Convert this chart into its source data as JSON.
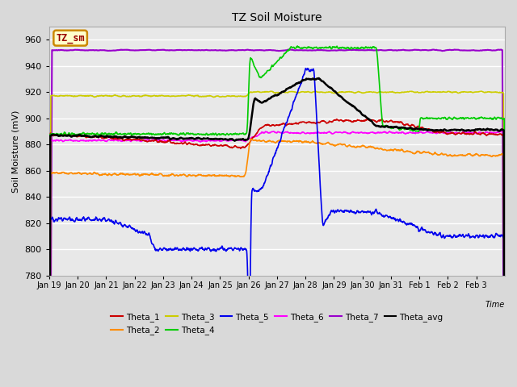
{
  "title": "TZ Soil Moisture",
  "ylabel": "Soil Moisture (mV)",
  "xlabel": "Time",
  "legend_label": "TZ_sm",
  "ylim": [
    780,
    970
  ],
  "yticks": [
    780,
    800,
    820,
    840,
    860,
    880,
    900,
    920,
    940,
    960
  ],
  "date_labels": [
    "Jan 19",
    "Jan 20",
    "Jan 21",
    "Jan 22",
    "Jan 23",
    "Jan 24",
    "Jan 25",
    "Jan 26",
    "Jan 27",
    "Jan 28",
    "Jan 29",
    "Jan 30",
    "Jan 31",
    "Feb 1",
    "Feb 2",
    "Feb 3"
  ],
  "series": {
    "Theta_1": {
      "color": "#cc0000",
      "lw": 1.2
    },
    "Theta_2": {
      "color": "#ff8c00",
      "lw": 1.2
    },
    "Theta_3": {
      "color": "#cccc00",
      "lw": 1.2
    },
    "Theta_4": {
      "color": "#00cc00",
      "lw": 1.2
    },
    "Theta_5": {
      "color": "#0000ee",
      "lw": 1.2
    },
    "Theta_6": {
      "color": "#ff00ff",
      "lw": 1.2
    },
    "Theta_7": {
      "color": "#9900cc",
      "lw": 1.5
    },
    "Theta_avg": {
      "color": "#000000",
      "lw": 1.8
    }
  },
  "legend_box_facecolor": "#ffffcc",
  "legend_box_edgecolor": "#cc8800",
  "legend_text_color": "#990000",
  "fig_facecolor": "#d9d9d9",
  "ax_facecolor": "#e8e8e8",
  "grid_color": "#ffffff"
}
